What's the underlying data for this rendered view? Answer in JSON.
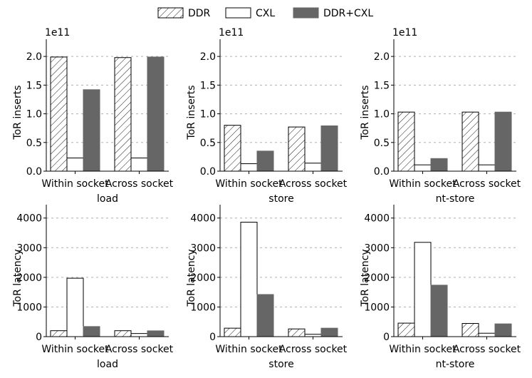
{
  "legend": {
    "position": "top-center",
    "entries": [
      {
        "name": "DDR",
        "style": "hatched"
      },
      {
        "name": "CXL",
        "style": "white"
      },
      {
        "name": "DDR+CXL",
        "style": "filled"
      }
    ]
  },
  "colors": {
    "DDR": "#ffffff",
    "CXL": "#ffffff",
    "DDR+CXL": "#666666",
    "grid": "#b0b0b0",
    "edge": "#000000"
  },
  "chart_data": [
    {
      "type": "bar",
      "xlabel": "load",
      "ylabel": "ToR inserts",
      "offset_label": "1e11",
      "ylim": [
        0,
        2.3
      ],
      "yticks": [
        "0.0",
        "0.5",
        "1.0",
        "1.5",
        "2.0"
      ],
      "ytick_values": [
        0,
        0.5,
        1.0,
        1.5,
        2.0
      ],
      "grid": true,
      "categories": [
        "Within socket",
        "Across socket"
      ],
      "series": [
        {
          "name": "DDR",
          "values": [
            1.99,
            1.98
          ]
        },
        {
          "name": "CXL",
          "values": [
            0.23,
            0.23
          ]
        },
        {
          "name": "DDR+CXL",
          "values": [
            1.42,
            1.99
          ]
        }
      ]
    },
    {
      "type": "bar",
      "xlabel": "store",
      "ylabel": "ToR inserts",
      "offset_label": "1e11",
      "ylim": [
        0,
        2.3
      ],
      "yticks": [
        "0.0",
        "0.5",
        "1.0",
        "1.5",
        "2.0"
      ],
      "ytick_values": [
        0,
        0.5,
        1.0,
        1.5,
        2.0
      ],
      "grid": true,
      "categories": [
        "Within socket",
        "Across socket"
      ],
      "series": [
        {
          "name": "DDR",
          "values": [
            0.8,
            0.77
          ]
        },
        {
          "name": "CXL",
          "values": [
            0.13,
            0.14
          ]
        },
        {
          "name": "DDR+CXL",
          "values": [
            0.35,
            0.79
          ]
        }
      ]
    },
    {
      "type": "bar",
      "xlabel": "nt-store",
      "ylabel": "ToR inserts",
      "offset_label": "1e11",
      "ylim": [
        0,
        2.3
      ],
      "yticks": [
        "0.0",
        "0.5",
        "1.0",
        "1.5",
        "2.0"
      ],
      "ytick_values": [
        0,
        0.5,
        1.0,
        1.5,
        2.0
      ],
      "grid": true,
      "categories": [
        "Within socket",
        "Across socket"
      ],
      "series": [
        {
          "name": "DDR",
          "values": [
            1.03,
            1.03
          ]
        },
        {
          "name": "CXL",
          "values": [
            0.11,
            0.11
          ]
        },
        {
          "name": "DDR+CXL",
          "values": [
            0.22,
            1.03
          ]
        }
      ]
    },
    {
      "type": "bar",
      "xlabel": "load",
      "ylabel": "ToR latency",
      "ylim": [
        0,
        4450
      ],
      "yticks": [
        "0",
        "1000",
        "2000",
        "3000",
        "4000"
      ],
      "ytick_values": [
        0,
        1000,
        2000,
        3000,
        4000
      ],
      "grid": true,
      "categories": [
        "Within socket",
        "Across socket"
      ],
      "series": [
        {
          "name": "DDR",
          "values": [
            200,
            200
          ]
        },
        {
          "name": "CXL",
          "values": [
            1970,
            105
          ]
        },
        {
          "name": "DDR+CXL",
          "values": [
            340,
            195
          ]
        }
      ]
    },
    {
      "type": "bar",
      "xlabel": "store",
      "ylabel": "ToR latency",
      "ylim": [
        0,
        4450
      ],
      "yticks": [
        "0",
        "1000",
        "2000",
        "3000",
        "4000"
      ],
      "ytick_values": [
        0,
        1000,
        2000,
        3000,
        4000
      ],
      "grid": true,
      "categories": [
        "Within socket",
        "Across socket"
      ],
      "series": [
        {
          "name": "DDR",
          "values": [
            285,
            260
          ]
        },
        {
          "name": "CXL",
          "values": [
            3860,
            80
          ]
        },
        {
          "name": "DDR+CXL",
          "values": [
            1420,
            285
          ]
        }
      ]
    },
    {
      "type": "bar",
      "xlabel": "nt-store",
      "ylabel": "ToR latency",
      "ylim": [
        0,
        4450
      ],
      "yticks": [
        "0",
        "1000",
        "2000",
        "3000",
        "4000"
      ],
      "ytick_values": [
        0,
        1000,
        2000,
        3000,
        4000
      ],
      "grid": true,
      "categories": [
        "Within socket",
        "Across socket"
      ],
      "series": [
        {
          "name": "DDR",
          "values": [
            455,
            445
          ]
        },
        {
          "name": "CXL",
          "values": [
            3180,
            115
          ]
        },
        {
          "name": "DDR+CXL",
          "values": [
            1735,
            430
          ]
        }
      ]
    }
  ]
}
